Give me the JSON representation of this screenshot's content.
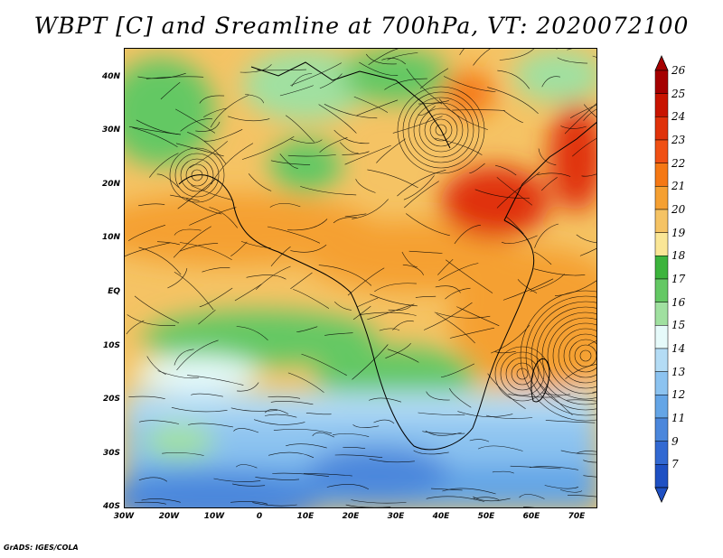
{
  "title": "WBPT [C] and Sreamline at 700hPa, VT: 2020072100",
  "footer": "GrADS: IGES/COLA",
  "map": {
    "lat_labels": [
      "40N",
      "30N",
      "20N",
      "10N",
      "EQ",
      "10S",
      "20S",
      "30S",
      "40S"
    ],
    "lon_labels": [
      "30W",
      "20W",
      "10W",
      "0",
      "10E",
      "20E",
      "30E",
      "40E",
      "50E",
      "60E",
      "70E"
    ]
  },
  "colorbar": {
    "labels": [
      "26",
      "25",
      "24",
      "23",
      "22",
      "21",
      "20",
      "19",
      "18",
      "17",
      "16",
      "15",
      "14",
      "13",
      "12",
      "11",
      "9",
      "7"
    ],
    "colors": [
      "#a50000",
      "#c81400",
      "#e0320a",
      "#f05014",
      "#f57814",
      "#f5a032",
      "#f5c364",
      "#fae696",
      "#3cb43c",
      "#64c864",
      "#a0e0a0",
      "#e6fafa",
      "#b4dcf5",
      "#8cc3f0",
      "#64a5e6",
      "#4b87dc",
      "#3269d2",
      "#1e50c3"
    ]
  }
}
